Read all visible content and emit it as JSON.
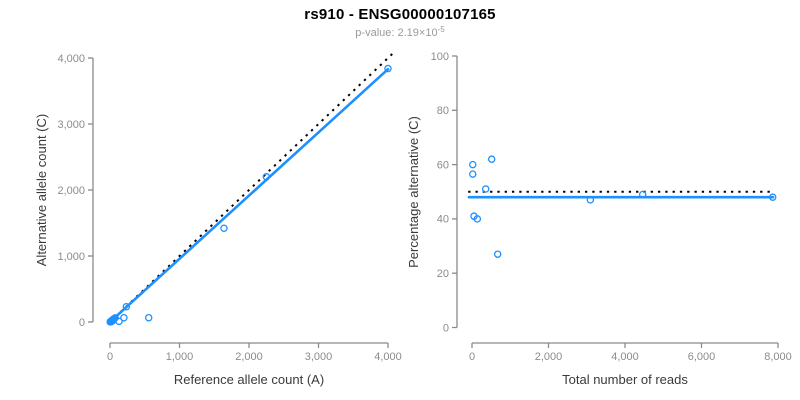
{
  "header": {
    "title": "rs910 - ENSG00000107165",
    "p_value_text": "p-value: 2.19×10",
    "p_value_exponent": "-5"
  },
  "colors": {
    "title_black": "#000000",
    "subtitle_gray": "#9a9a9a",
    "accent_blue": "#1E90FF",
    "identity_black": "#000000",
    "axis_gray": "#8a8a8a",
    "tick_text_gray": "#8c8c8c",
    "axis_title_gray": "#3a3a3a",
    "background": "#ffffff"
  },
  "chart_data": [
    {
      "id": "allele-counts",
      "type": "scatter",
      "title": "",
      "xlabel": "Reference allele count (A)",
      "ylabel": "Alternative allele count (C)",
      "xlim": [
        0,
        4000
      ],
      "ylim": [
        0,
        4000
      ],
      "grid": false,
      "legend": false,
      "xticks": {
        "values": [
          0,
          1000,
          2000,
          3000,
          4000
        ],
        "labels": [
          "0",
          "1,000",
          "2,000",
          "3,000",
          "4,000"
        ]
      },
      "yticks": {
        "values": [
          0,
          1000,
          2000,
          3000,
          4000
        ],
        "labels": [
          "0",
          "1,000",
          "2,000",
          "3,000",
          "4,000"
        ]
      },
      "points": [
        [
          3,
          2
        ],
        [
          7,
          5
        ],
        [
          12,
          9
        ],
        [
          17,
          13
        ],
        [
          23,
          18
        ],
        [
          30,
          24
        ],
        [
          38,
          31
        ],
        [
          47,
          39
        ],
        [
          57,
          48
        ],
        [
          10,
          2
        ],
        [
          20,
          8
        ],
        [
          33,
          15
        ],
        [
          44,
          28
        ],
        [
          62,
          52
        ],
        [
          74,
          62
        ],
        [
          130,
          10
        ],
        [
          200,
          65
        ],
        [
          235,
          232
        ],
        [
          557,
          65
        ],
        [
          1640,
          1420
        ],
        [
          2250,
          2200
        ],
        [
          4000,
          3840
        ]
      ],
      "lines": [
        {
          "name": "identity-line",
          "style": "dotted",
          "color_key": "identity_black",
          "from": [
            0,
            0
          ],
          "to": [
            4100,
            4100
          ]
        },
        {
          "name": "fit-line",
          "style": "solid",
          "color_key": "accent_blue",
          "from": [
            0,
            0
          ],
          "to": [
            4000,
            3830
          ]
        }
      ]
    },
    {
      "id": "percentage-by-depth",
      "type": "scatter",
      "title": "",
      "xlabel": "Total number of reads",
      "ylabel": "Percentage alternative (C)",
      "xlim": [
        0,
        8000
      ],
      "ylim": [
        0,
        100
      ],
      "grid": false,
      "legend": false,
      "xticks": {
        "values": [
          0,
          2000,
          4000,
          6000,
          8000
        ],
        "labels": [
          "0",
          "2,000",
          "4,000",
          "6,000",
          "8,000"
        ]
      },
      "yticks": {
        "values": [
          0,
          20,
          40,
          60,
          80,
          100
        ],
        "labels": [
          "0",
          "20",
          "40",
          "60",
          "80",
          "100"
        ]
      },
      "points": [
        [
          20,
          60
        ],
        [
          20,
          56.5
        ],
        [
          515,
          62
        ],
        [
          358,
          51
        ],
        [
          52,
          41
        ],
        [
          139,
          40
        ],
        [
          672,
          27
        ],
        [
          3094,
          47
        ],
        [
          4463,
          49
        ],
        [
          7862,
          48
        ]
      ],
      "lines": [
        {
          "name": "identity-line",
          "style": "dotted",
          "color_key": "identity_black",
          "from": [
            -100,
            50
          ],
          "to": [
            7800,
            50
          ]
        },
        {
          "name": "fit-line",
          "style": "solid",
          "color_key": "accent_blue",
          "from": [
            -80,
            48
          ],
          "to": [
            7870,
            48
          ]
        }
      ]
    }
  ]
}
